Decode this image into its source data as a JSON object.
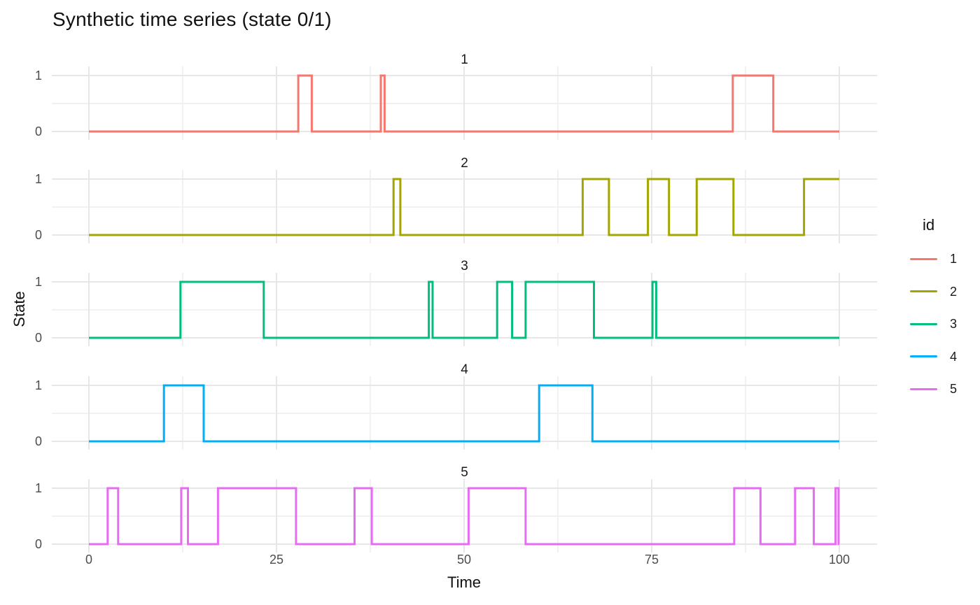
{
  "title": "Synthetic time series (state 0/1)",
  "axes": {
    "xlabel": "Time",
    "ylabel": "State",
    "x_ticks": [
      0,
      25,
      50,
      75,
      100
    ],
    "y_ticks": [
      0,
      1
    ]
  },
  "legend": {
    "title": "id",
    "position": "right",
    "entries": [
      {
        "label": "1",
        "color": "#F8766D"
      },
      {
        "label": "2",
        "color": "#A3A500"
      },
      {
        "label": "3",
        "color": "#00BF7D"
      },
      {
        "label": "4",
        "color": "#00B0F6"
      },
      {
        "label": "5",
        "color": "#E76BF3"
      }
    ]
  },
  "colors": {
    "background": "#ffffff",
    "grid_major": "#e7e7e7",
    "grid_minor": "#f1f1f1",
    "tick_text": "#4d4d4d",
    "text": "#111111"
  },
  "chart_data": {
    "type": "line",
    "subtype": "step",
    "title": "Synthetic time series (state 0/1)",
    "xlabel": "Time",
    "ylabel": "State",
    "xlim": [
      0,
      100
    ],
    "ylim": [
      0,
      1
    ],
    "grid": {
      "major_x": [
        0,
        25,
        50,
        75,
        100
      ],
      "minor_x": [
        12.5,
        37.5,
        62.5,
        87.5
      ],
      "major_y": [
        0,
        1
      ],
      "minor_y": [
        0.5
      ]
    },
    "facets": [
      {
        "label": "1",
        "series": "1",
        "color": "#F8766D",
        "baseline": 0,
        "high_intervals": [
          [
            27.9,
            29.7
          ],
          [
            38.9,
            39.4
          ],
          [
            85.8,
            91.2
          ]
        ]
      },
      {
        "label": "2",
        "series": "2",
        "color": "#A3A500",
        "baseline": 0,
        "high_intervals": [
          [
            40.6,
            41.5
          ],
          [
            65.8,
            69.3
          ],
          [
            74.5,
            77.3
          ],
          [
            81.0,
            85.9
          ],
          [
            95.3,
            100
          ]
        ]
      },
      {
        "label": "3",
        "series": "3",
        "color": "#00BF7D",
        "baseline": 0,
        "high_intervals": [
          [
            12.2,
            23.3
          ],
          [
            45.3,
            45.8
          ],
          [
            54.4,
            56.4
          ],
          [
            58.2,
            67.3
          ],
          [
            75.1,
            75.6
          ]
        ]
      },
      {
        "label": "4",
        "series": "4",
        "color": "#00B0F6",
        "baseline": 0,
        "high_intervals": [
          [
            10.0,
            15.3
          ],
          [
            60.0,
            67.1
          ]
        ]
      },
      {
        "label": "5",
        "series": "5",
        "color": "#E76BF3",
        "baseline": 0,
        "high_intervals": [
          [
            2.5,
            3.9
          ],
          [
            12.3,
            13.2
          ],
          [
            17.2,
            27.6
          ],
          [
            35.4,
            37.7
          ],
          [
            50.6,
            58.2
          ],
          [
            86.0,
            89.5
          ],
          [
            94.1,
            96.6
          ],
          [
            99.5,
            99.9
          ]
        ]
      }
    ]
  }
}
